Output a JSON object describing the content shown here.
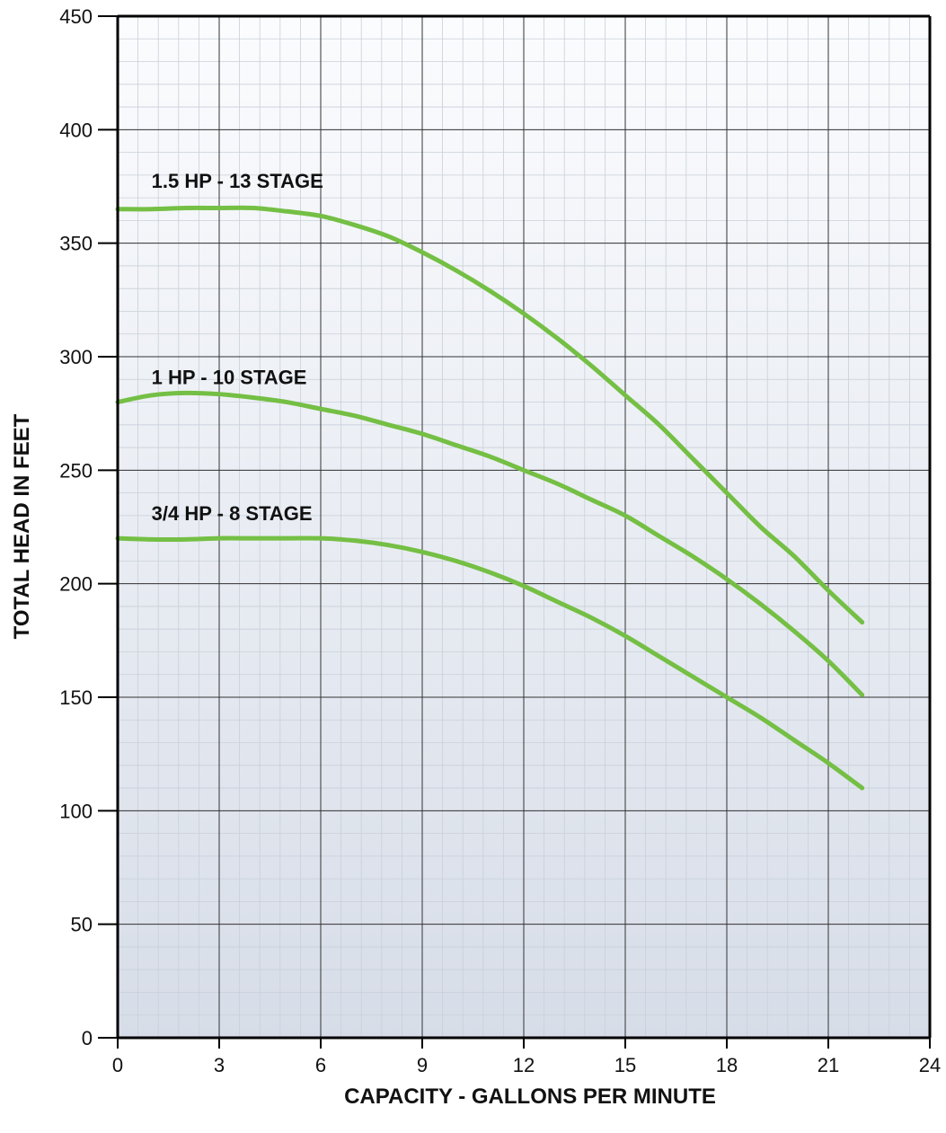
{
  "chart_data": {
    "type": "line",
    "xlabel": "CAPACITY - GALLONS PER MINUTE",
    "ylabel": "TOTAL HEAD IN FEET",
    "xlim": [
      0,
      24
    ],
    "ylim": [
      0,
      450
    ],
    "x_ticks": [
      "0",
      "3",
      "6",
      "9",
      "12",
      "15",
      "18",
      "21",
      "24"
    ],
    "y_ticks": [
      "0",
      "50",
      "100",
      "150",
      "200",
      "250",
      "300",
      "350",
      "400",
      "450"
    ],
    "grid": true,
    "line_color": "#74bf44",
    "series": [
      {
        "name": "1.5 HP - 13 STAGE",
        "x": [
          0,
          1,
          2,
          3,
          4,
          5,
          6,
          7,
          8,
          9,
          10,
          11,
          12,
          13,
          14,
          15,
          16,
          17,
          18,
          19,
          20,
          21,
          22
        ],
        "y": [
          365,
          365,
          365.5,
          365.5,
          365.5,
          364,
          362,
          358,
          353,
          346,
          338,
          329,
          319,
          308,
          296,
          283,
          270,
          255,
          240,
          225,
          212,
          197,
          183
        ]
      },
      {
        "name": "1 HP - 10 STAGE",
        "x": [
          0,
          1,
          2,
          3,
          4,
          5,
          6,
          7,
          8,
          9,
          10,
          11,
          12,
          13,
          14,
          15,
          16,
          17,
          18,
          19,
          20,
          21,
          22
        ],
        "y": [
          280,
          283,
          284,
          283.5,
          282,
          280,
          277,
          274,
          270,
          266,
          261,
          256,
          250,
          244,
          237,
          230,
          221,
          212,
          202,
          191,
          179,
          166,
          151
        ]
      },
      {
        "name": "3/4 HP - 8 STAGE",
        "x": [
          0,
          1,
          2,
          3,
          4,
          5,
          6,
          7,
          8,
          9,
          10,
          11,
          12,
          13,
          14,
          15,
          16,
          17,
          18,
          19,
          20,
          21,
          22
        ],
        "y": [
          220,
          219.5,
          219.5,
          220,
          220,
          220,
          220,
          219,
          217,
          214,
          210,
          205,
          199,
          192,
          185,
          177,
          168,
          159,
          150,
          141,
          131,
          121,
          110
        ]
      }
    ]
  }
}
